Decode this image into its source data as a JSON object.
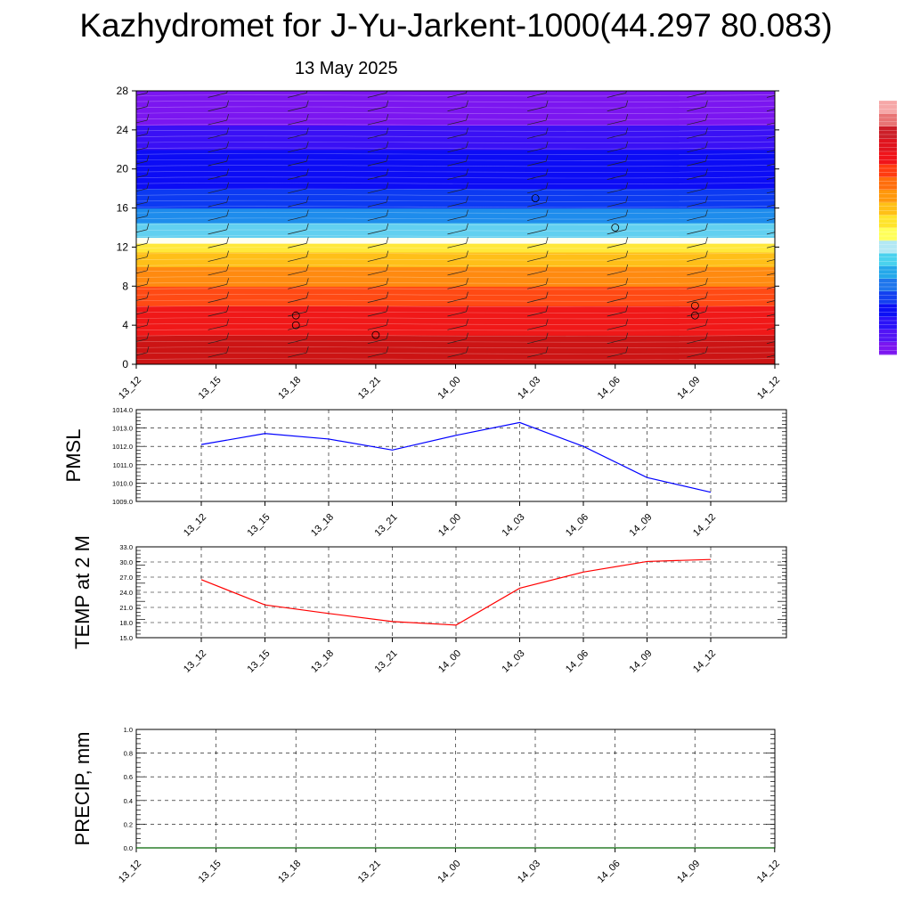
{
  "page": {
    "title": "Kazhydromet for J-Yu-Jarkent-1000(44.297 80.083)",
    "subtitle": "13 May 2025"
  },
  "colors": {
    "pmsl_line": "#0000ff",
    "temp_line": "#ff0000",
    "precip_line": "#006400",
    "colorbar": [
      "#7b16f0",
      "#5214f5",
      "#2a12f8",
      "#0c10f5",
      "#1340f0",
      "#1f76ec",
      "#25a8ea",
      "#4ad2ee",
      "#b2e8f4",
      "#ffff5a",
      "#ffe42c",
      "#ffc016",
      "#ff980c",
      "#ff6e0c",
      "#ff3c10",
      "#f0141a",
      "#e0141e",
      "#cc1e28",
      "#e87474",
      "#f6a8a8"
    ]
  },
  "chart_data": [
    {
      "type": "heatmap",
      "name": "height-time cross-section",
      "x_tick_labels": [
        "13_12",
        "13_15",
        "13_18",
        "13_21",
        "14_00",
        "14_03",
        "14_06",
        "14_09",
        "14_12"
      ],
      "y_tick_labels": [
        "0",
        "4",
        "8",
        "12",
        "16",
        "20",
        "24",
        "28"
      ],
      "ylim": [
        0,
        28
      ],
      "layers": [
        {
          "from": 0,
          "to": 3,
          "color": "#cc1414"
        },
        {
          "from": 3,
          "to": 6,
          "color": "#f01818"
        },
        {
          "from": 6,
          "to": 8,
          "color": "#ff4a14"
        },
        {
          "from": 8,
          "to": 10,
          "color": "#ff8a10"
        },
        {
          "from": 10,
          "to": 11.5,
          "color": "#ffbf18"
        },
        {
          "from": 11.5,
          "to": 12.4,
          "color": "#ffe83a"
        },
        {
          "from": 12.4,
          "to": 13,
          "color": "#fffff0"
        },
        {
          "from": 13,
          "to": 14.5,
          "color": "#62d0f0"
        },
        {
          "from": 14.5,
          "to": 16,
          "color": "#1e8cec"
        },
        {
          "from": 16,
          "to": 18,
          "color": "#0c3af2"
        },
        {
          "from": 18,
          "to": 22,
          "color": "#0c0cf5"
        },
        {
          "from": 22,
          "to": 24.5,
          "color": "#3a10f5"
        },
        {
          "from": 24.5,
          "to": 28,
          "color": "#7b16f0"
        }
      ],
      "circle_markers": [
        {
          "x": 2,
          "y": 5
        },
        {
          "x": 2,
          "y": 4
        },
        {
          "x": 3,
          "y": 3
        },
        {
          "x": 5,
          "y": 17
        },
        {
          "x": 6,
          "y": 14
        },
        {
          "x": 7,
          "y": 6
        },
        {
          "x": 7,
          "y": 5
        }
      ],
      "wind_barbs": "present at every time step on all levels"
    },
    {
      "type": "line",
      "ylabel": "PMSL",
      "x_tick_labels": [
        "13_12",
        "13_15",
        "13_18",
        "13_21",
        "14_00",
        "14_03",
        "14_06",
        "14_09",
        "14_12"
      ],
      "y_tick_labels": [
        "1009.0",
        "1010.0",
        "1011.0",
        "1012.0",
        "1013.0",
        "1014.0"
      ],
      "ylim": [
        1009.0,
        1014.0
      ],
      "grid": true,
      "series": [
        {
          "values": [
            1012.1,
            1012.7,
            1012.4,
            1011.8,
            1012.6,
            1013.3,
            1012.0,
            1010.3,
            1009.5
          ]
        }
      ]
    },
    {
      "type": "line",
      "ylabel": "TEMP at 2 M",
      "x_tick_labels": [
        "13_12",
        "13_15",
        "13_18",
        "13_21",
        "14_00",
        "14_03",
        "14_06",
        "14_09",
        "14_12"
      ],
      "y_tick_labels": [
        "15.0",
        "18.0",
        "21.0",
        "24.0",
        "27.0",
        "30.0",
        "33.0"
      ],
      "ylim": [
        15.0,
        33.0
      ],
      "grid": true,
      "series": [
        {
          "values": [
            26.5,
            21.5,
            19.8,
            18.2,
            17.5,
            24.8,
            28.0,
            30.1,
            30.5
          ]
        }
      ]
    },
    {
      "type": "line",
      "ylabel": "PRECIP, mm",
      "x_tick_labels": [
        "13_12",
        "13_15",
        "13_18",
        "13_21",
        "14_00",
        "14_03",
        "14_06",
        "14_09",
        "14_12"
      ],
      "y_tick_labels": [
        "0.0",
        "0.2",
        "0.4",
        "0.6",
        "0.8",
        "1.0"
      ],
      "ylim": [
        0.0,
        1.0
      ],
      "grid": true,
      "series": [
        {
          "values": [
            0,
            0,
            0,
            0,
            0,
            0,
            0,
            0,
            0
          ]
        }
      ]
    }
  ]
}
